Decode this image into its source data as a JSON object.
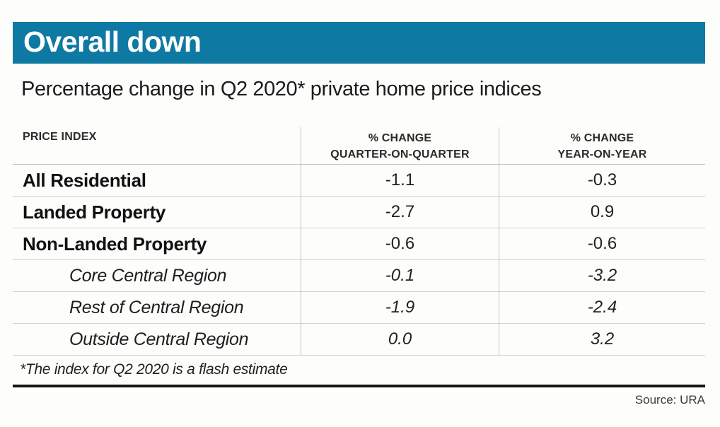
{
  "title": "Overall down",
  "subtitle": "Percentage change in Q2 2020* private home price indices",
  "colors": {
    "header_bar": "#0e79a2",
    "title_text": "#ffffff"
  },
  "table": {
    "col1_header": "PRICE INDEX",
    "col2_header_line1": "% CHANGE",
    "col2_header_line2": "QUARTER-ON-QUARTER",
    "col3_header_line1": "% CHANGE",
    "col3_header_line2": "YEAR-ON-YEAR",
    "rows": [
      {
        "label": "All Residential",
        "qoq": "-1.1",
        "yoy": "-0.3"
      },
      {
        "label": "Landed Property",
        "qoq": "-2.7",
        "yoy": "0.9"
      },
      {
        "label": "Non-Landed Property",
        "qoq": "-0.6",
        "yoy": "-0.6"
      },
      {
        "label": "Core Central Region",
        "qoq": "-0.1",
        "yoy": "-3.2"
      },
      {
        "label": "Rest of Central Region",
        "qoq": "-1.9",
        "yoy": "-2.4"
      },
      {
        "label": "Outside Central Region",
        "qoq": "0.0",
        "yoy": "3.2"
      }
    ]
  },
  "footnote": "*The index for Q2 2020 is a flash estimate",
  "source": "Source: URA",
  "chart_data": {
    "type": "table",
    "title": "Overall down",
    "subtitle": "Percentage change in Q2 2020* private home price indices",
    "columns": [
      "PRICE INDEX",
      "% CHANGE QUARTER-ON-QUARTER",
      "% CHANGE YEAR-ON-YEAR"
    ],
    "rows": [
      {
        "price_index": "All Residential",
        "qoq_pct_change": -1.1,
        "yoy_pct_change": -0.3,
        "indented": false
      },
      {
        "price_index": "Landed Property",
        "qoq_pct_change": -2.7,
        "yoy_pct_change": 0.9,
        "indented": false
      },
      {
        "price_index": "Non-Landed Property",
        "qoq_pct_change": -0.6,
        "yoy_pct_change": -0.6,
        "indented": false
      },
      {
        "price_index": "Core Central Region",
        "qoq_pct_change": -0.1,
        "yoy_pct_change": -3.2,
        "indented": true
      },
      {
        "price_index": "Rest of Central Region",
        "qoq_pct_change": -1.9,
        "yoy_pct_change": -2.4,
        "indented": true
      },
      {
        "price_index": "Outside Central Region",
        "qoq_pct_change": 0.0,
        "yoy_pct_change": 3.2,
        "indented": true
      }
    ],
    "footnote": "*The index for Q2 2020 is a flash estimate",
    "source": "URA"
  }
}
